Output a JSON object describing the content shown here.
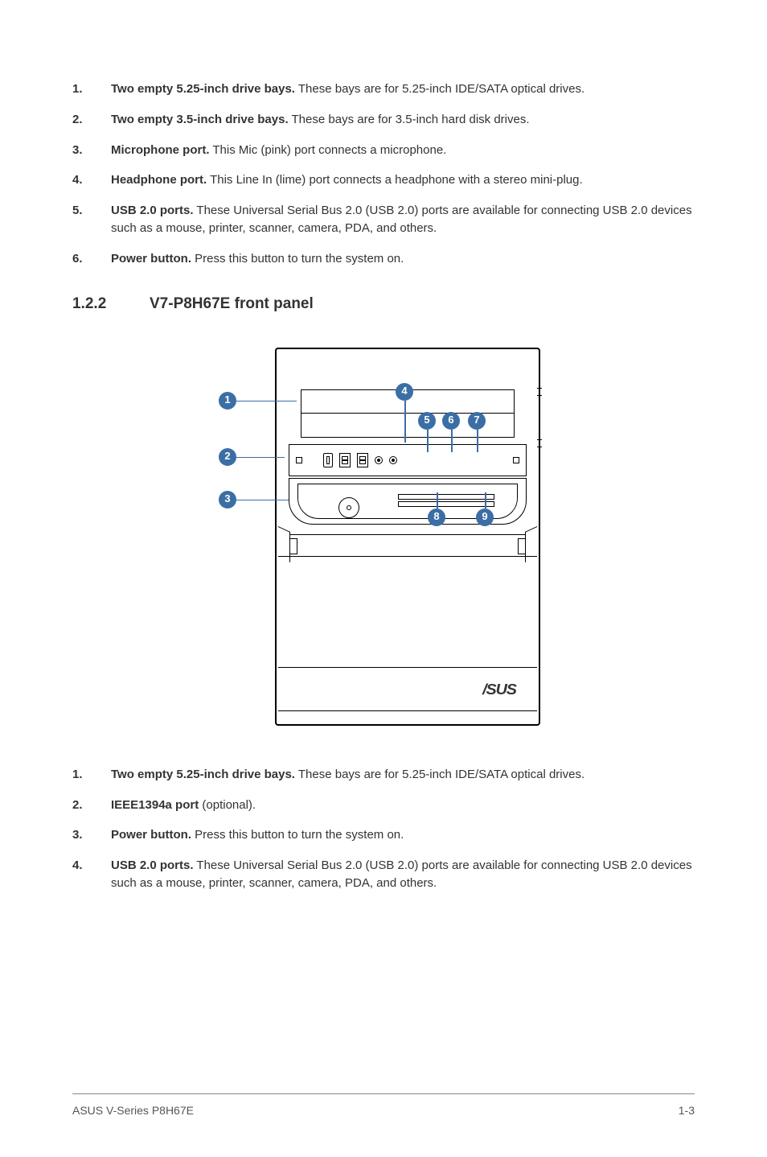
{
  "list_top": {
    "items": [
      {
        "num": "1.",
        "bold": "Two empty 5.25-inch drive bays.",
        "text": " These bays are for 5.25-inch IDE/SATA optical drives."
      },
      {
        "num": "2.",
        "bold": "Two empty 3.5-inch drive bays.",
        "text": " These bays are for 3.5-inch hard disk drives."
      },
      {
        "num": "3.",
        "bold": "Microphone port.",
        "text": " This Mic (pink) port connects a microphone."
      },
      {
        "num": "4.",
        "bold": "Headphone port.",
        "text": " This Line In (lime) port connects a headphone with a stereo mini-plug."
      },
      {
        "num": "5.",
        "bold": "USB 2.0 ports.",
        "text": " These Universal Serial Bus 2.0 (USB 2.0) ports are available for connecting USB 2.0 devices such as a mouse, printer, scanner, camera, PDA, and others."
      },
      {
        "num": "6.",
        "bold": "Power button.",
        "text": " Press this button to turn the system on."
      }
    ]
  },
  "section": {
    "num": "1.2.2",
    "title": "V7-P8H67E front panel"
  },
  "callouts": {
    "c1": "1",
    "c2": "2",
    "c3": "3",
    "c4": "4",
    "c5": "5",
    "c6": "6",
    "c7": "7",
    "c8": "8",
    "c9": "9"
  },
  "logo_text": "/SUS",
  "list_bottom": {
    "items": [
      {
        "num": "1.",
        "bold": "Two empty 5.25-inch drive bays.",
        "text": " These bays are for 5.25-inch IDE/SATA optical drives."
      },
      {
        "num": "2.",
        "bold": "IEEE1394a port",
        "text": " (optional)."
      },
      {
        "num": "3.",
        "bold": "Power button.",
        "text": " Press this button to turn the system on."
      },
      {
        "num": "4.",
        "bold": "USB 2.0 ports.",
        "text": " These Universal Serial Bus 2.0 (USB 2.0) ports are available for connecting USB 2.0 devices such as a mouse, printer, scanner, camera, PDA, and others."
      }
    ]
  },
  "footer": {
    "left": "ASUS V-Series P8H67E",
    "right": "1-3"
  },
  "colors": {
    "callout_bg": "#3b6ea5",
    "text": "#333333",
    "border": "#000000"
  }
}
